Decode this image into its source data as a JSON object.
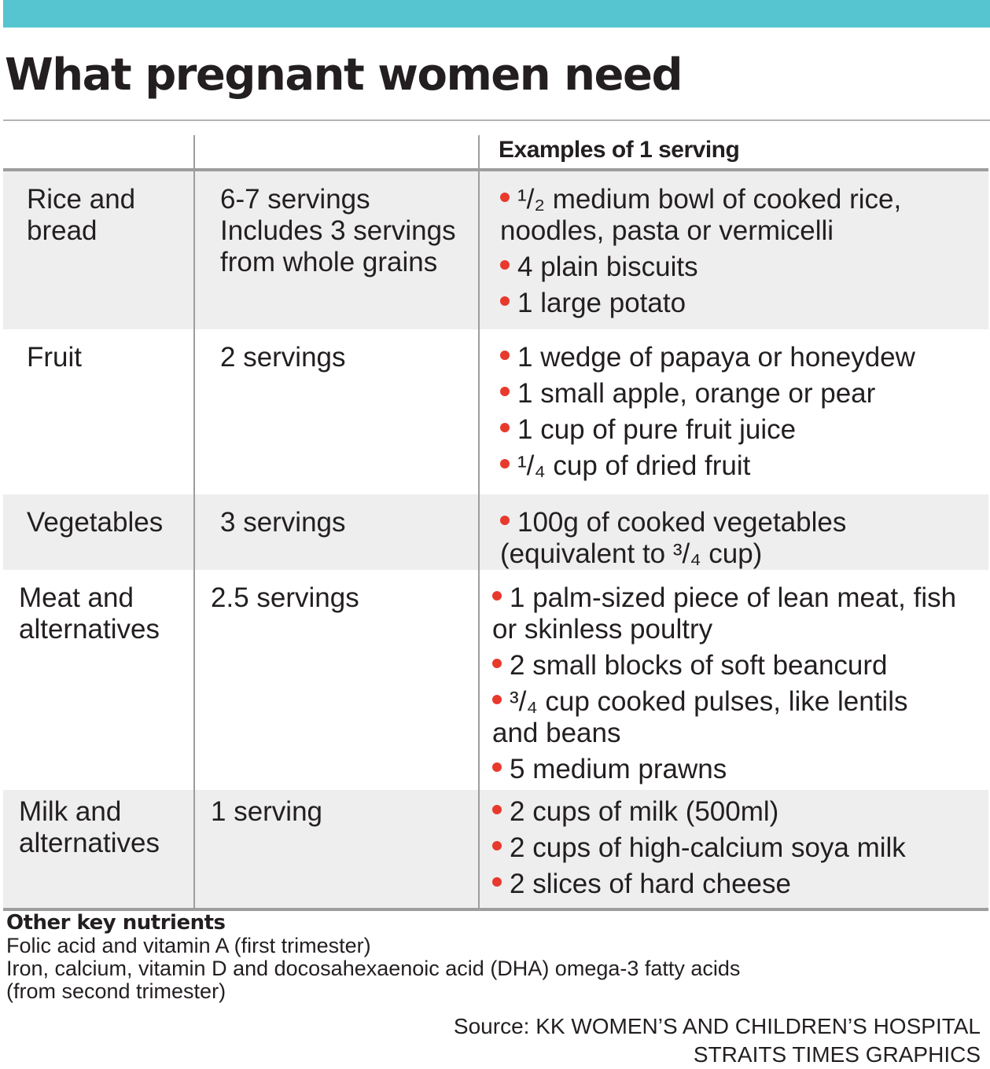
{
  "title": "What pregnant women need",
  "table": {
    "headers": [
      "",
      "",
      "Examples of 1 serving"
    ],
    "rows": [
      {
        "category": [
          "Rice and",
          "bread"
        ],
        "servings": [
          "6-7 servings",
          "Includes 3 servings",
          "from whole grains"
        ],
        "examples": [
          [
            "¹/₂ medium bowl of cooked rice,",
            "noodles, pasta or vermicelli"
          ],
          [
            "4 plain biscuits"
          ],
          [
            "1 large potato"
          ]
        ]
      },
      {
        "category": [
          "Fruit"
        ],
        "servings": [
          "2 servings"
        ],
        "examples": [
          [
            "1 wedge of papaya or honeydew"
          ],
          [
            "1 small apple, orange or pear"
          ],
          [
            "1 cup of pure fruit juice"
          ],
          [
            "¹/₄ cup of dried fruit"
          ]
        ]
      },
      {
        "category": [
          "Vegetables"
        ],
        "servings": [
          "3 servings"
        ],
        "examples": [
          [
            "100g of cooked vegetables",
            "(equivalent to ³/₄ cup)"
          ]
        ]
      },
      {
        "category": [
          "Meat and",
          "alternatives"
        ],
        "servings": [
          "2.5 servings"
        ],
        "examples": [
          [
            "1 palm-sized piece of lean meat, fish",
            "or skinless poultry"
          ],
          [
            "2 small blocks of soft beancurd"
          ],
          [
            "³/₄ cup cooked pulses, like lentils",
            "and beans"
          ],
          [
            "5 medium prawns"
          ]
        ]
      },
      {
        "category": [
          "Milk and",
          "alternatives"
        ],
        "servings": [
          "1 serving"
        ],
        "examples": [
          [
            "2 cups of milk (500ml)"
          ],
          [
            "2 cups of high-calcium soya milk"
          ],
          [
            "2 slices of hard cheese"
          ]
        ]
      }
    ]
  },
  "notes": {
    "heading": "Other key nutrients",
    "lines": [
      "Folic acid and vitamin A (first trimester)",
      "Iron, calcium, vitamin D and docosahexaenoic acid (DHA) omega-3 fatty acids",
      "(from second trimester)"
    ]
  },
  "credits": {
    "source": "Source: KK WOMEN’S AND CHILDREN’S HOSPITAL",
    "graphics": "STRAITS TIMES GRAPHICS"
  },
  "colors": {
    "accent_bar": "#56c5d0",
    "bullet": "#e8392d",
    "row_shade": "#eeeeee"
  }
}
